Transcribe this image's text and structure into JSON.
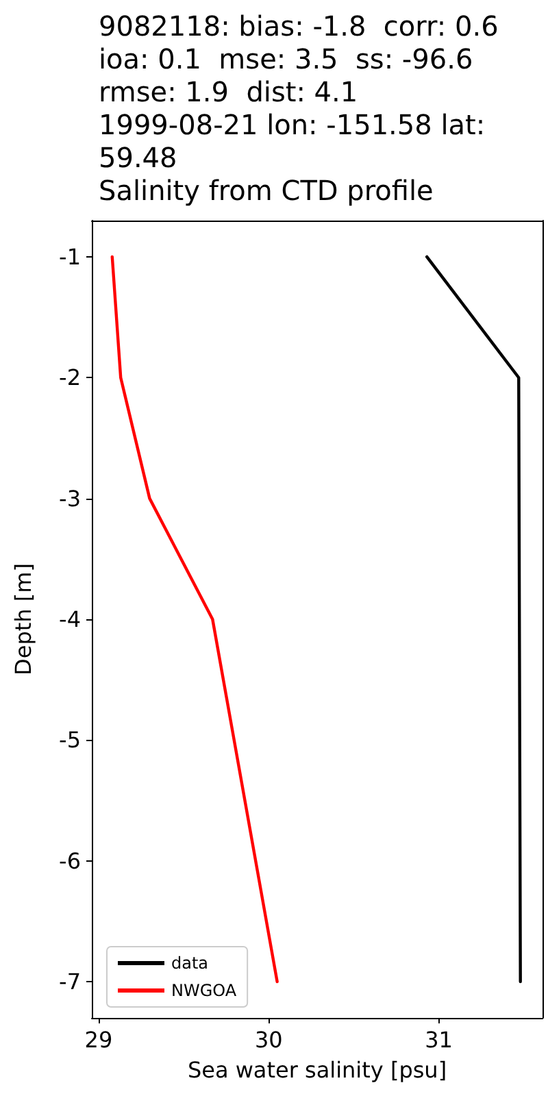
{
  "chart_data": {
    "type": "line",
    "title": "9082118: bias: -1.8  corr: 0.6\nioa: 0.1  mse: 3.5  ss: -96.6\nrmse: 1.9  dist: 4.1\n1999-08-21 lon: -151.58 lat:\n59.48\nSalinity from CTD profile",
    "xlabel": "Sea water salinity [psu]",
    "ylabel": "Depth [m]",
    "series": [
      {
        "name": "data",
        "color": "#000000",
        "x": [
          30.93,
          31.47,
          31.48
        ],
        "values": [
          -1,
          -2,
          -7
        ]
      },
      {
        "name": "NWGOA",
        "color": "#ff0000",
        "x": [
          29.08,
          29.13,
          29.3,
          29.67,
          30.05
        ],
        "values": [
          -1,
          -2,
          -3,
          -4,
          -7
        ]
      }
    ],
    "xlim": [
      28.96,
      31.61
    ],
    "xticks": [
      29,
      30,
      31
    ],
    "ylim": [
      -7.3,
      -0.7
    ],
    "yticks": [
      -7,
      -6,
      -5,
      -4,
      -3,
      -2,
      -1
    ],
    "grid": false,
    "legend": "bottom left",
    "marker": "none",
    "line_style": "solid"
  }
}
